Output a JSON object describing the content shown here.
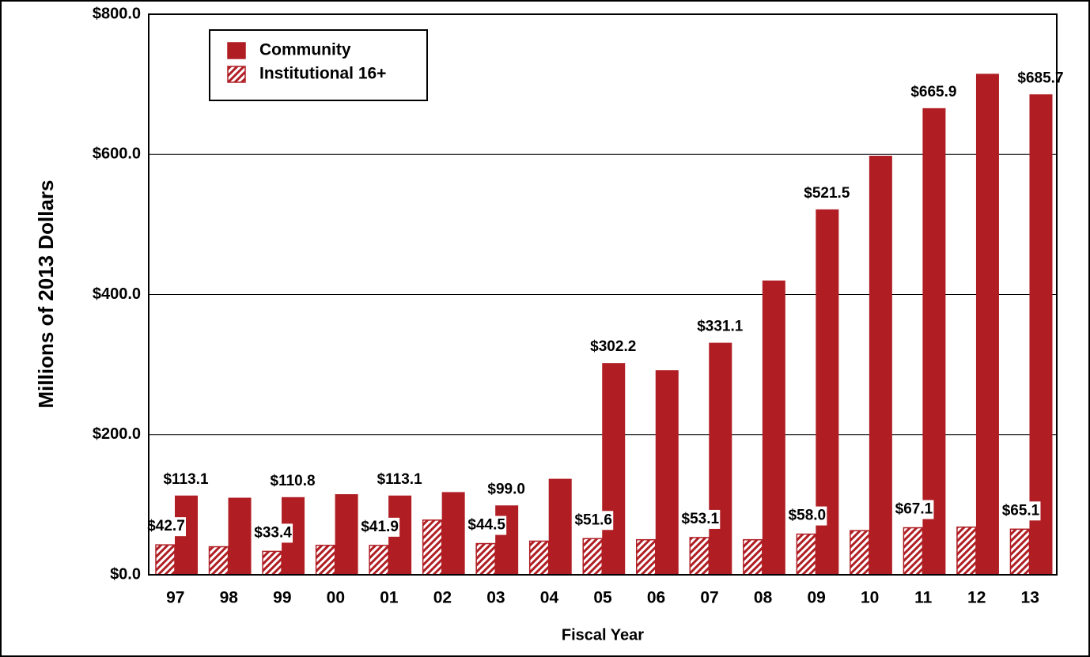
{
  "chart_data": {
    "type": "bar",
    "x_label": "Fiscal Year",
    "y_label": "Millions of 2013 Dollars",
    "categories": [
      "97",
      "98",
      "99",
      "00",
      "01",
      "02",
      "03",
      "04",
      "05",
      "06",
      "07",
      "08",
      "09",
      "10",
      "11",
      "12",
      "13"
    ],
    "series": [
      {
        "name": "Community",
        "color": "#b01e24",
        "values": [
          113.1,
          110.0,
          110.8,
          115.0,
          113.1,
          118.0,
          99.0,
          137.0,
          302.2,
          292.0,
          331.1,
          420.0,
          521.5,
          598.0,
          665.9,
          715.0,
          685.7
        ],
        "value_labels": [
          "$113.1",
          null,
          "$110.8",
          null,
          "$113.1",
          null,
          "$99.0",
          null,
          "$302.2",
          null,
          "$331.1",
          null,
          "$521.5",
          null,
          "$665.9",
          null,
          "$685.7"
        ]
      },
      {
        "name": "Institutional 16+",
        "color": "#b01e24",
        "pattern": "hatch",
        "values": [
          42.7,
          40.0,
          33.4,
          42.0,
          41.9,
          78.0,
          44.5,
          48.0,
          51.6,
          50.0,
          53.1,
          50.0,
          58.0,
          63.0,
          67.1,
          68.0,
          65.1
        ],
        "value_labels": [
          "$42.7",
          null,
          "$33.4",
          null,
          "$41.9",
          null,
          "$44.5",
          null,
          "$51.6",
          null,
          "$53.1",
          null,
          "$58.0",
          null,
          "$67.1",
          null,
          "$65.1"
        ]
      }
    ],
    "ylim": [
      0,
      800
    ],
    "yticks": [
      {
        "value": 0,
        "label": "$0.0"
      },
      {
        "value": 200,
        "label": "$200.0"
      },
      {
        "value": 400,
        "label": "$400.0"
      },
      {
        "value": 600,
        "label": "$600.0"
      },
      {
        "value": 800,
        "label": "$800.0"
      }
    ],
    "grid": true,
    "legend": "upper left"
  }
}
